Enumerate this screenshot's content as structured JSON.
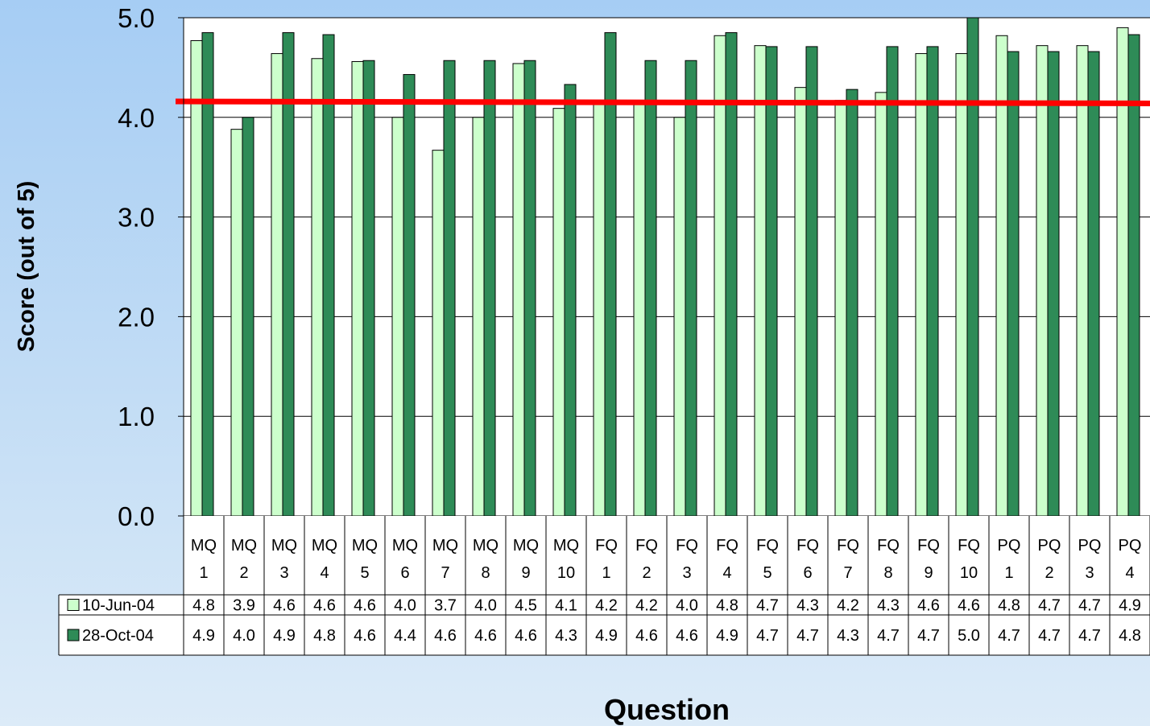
{
  "chart_data": {
    "type": "bar",
    "title": "",
    "xlabel": "Question",
    "ylabel": "Score (out of 5)",
    "ylim": [
      0,
      5
    ],
    "yticks": [
      "0.0",
      "1.0",
      "2.0",
      "3.0",
      "4.0",
      "5.0"
    ],
    "grid": true,
    "legend": "data-table",
    "categories": [
      [
        "MQ",
        "1"
      ],
      [
        "MQ",
        "2"
      ],
      [
        "MQ",
        "3"
      ],
      [
        "MQ",
        "4"
      ],
      [
        "MQ",
        "5"
      ],
      [
        "MQ",
        "6"
      ],
      [
        "MQ",
        "7"
      ],
      [
        "MQ",
        "8"
      ],
      [
        "MQ",
        "9"
      ],
      [
        "MQ",
        "10"
      ],
      [
        "FQ",
        "1"
      ],
      [
        "FQ",
        "2"
      ],
      [
        "FQ",
        "3"
      ],
      [
        "FQ",
        "4"
      ],
      [
        "FQ",
        "5"
      ],
      [
        "FQ",
        "6"
      ],
      [
        "FQ",
        "7"
      ],
      [
        "FQ",
        "8"
      ],
      [
        "FQ",
        "9"
      ],
      [
        "FQ",
        "10"
      ],
      [
        "PQ",
        "1"
      ],
      [
        "PQ",
        "2"
      ],
      [
        "PQ",
        "3"
      ],
      [
        "PQ",
        "4"
      ]
    ],
    "series": [
      {
        "name": "10-Jun-04",
        "color": "#ccffcc",
        "values": [
          4.77,
          3.88,
          4.64,
          4.59,
          4.56,
          4.0,
          3.67,
          4.0,
          4.54,
          4.09,
          4.17,
          4.17,
          4.0,
          4.82,
          4.72,
          4.3,
          4.17,
          4.25,
          4.64,
          4.64,
          4.82,
          4.72,
          4.72,
          4.9
        ],
        "labels": [
          "4.8",
          "3.9",
          "4.6",
          "4.6",
          "4.6",
          "4.0",
          "3.7",
          "4.0",
          "4.5",
          "4.1",
          "4.2",
          "4.2",
          "4.0",
          "4.8",
          "4.7",
          "4.3",
          "4.2",
          "4.3",
          "4.6",
          "4.6",
          "4.8",
          "4.7",
          "4.7",
          "4.9"
        ]
      },
      {
        "name": "28-Oct-04",
        "color": "#2e8b57",
        "values": [
          4.85,
          4.0,
          4.85,
          4.83,
          4.57,
          4.43,
          4.57,
          4.57,
          4.57,
          4.33,
          4.85,
          4.57,
          4.57,
          4.85,
          4.71,
          4.71,
          4.28,
          4.71,
          4.71,
          5.0,
          4.66,
          4.66,
          4.66,
          4.83
        ],
        "labels": [
          "4.9",
          "4.0",
          "4.9",
          "4.8",
          "4.6",
          "4.4",
          "4.6",
          "4.6",
          "4.6",
          "4.3",
          "4.9",
          "4.6",
          "4.6",
          "4.9",
          "4.7",
          "4.7",
          "4.3",
          "4.7",
          "4.7",
          "5.0",
          "4.7",
          "4.7",
          "4.7",
          "4.8"
        ]
      }
    ],
    "reference_line": {
      "y_start": 4.16,
      "y_end": 4.14,
      "color": "#ff0000"
    }
  }
}
